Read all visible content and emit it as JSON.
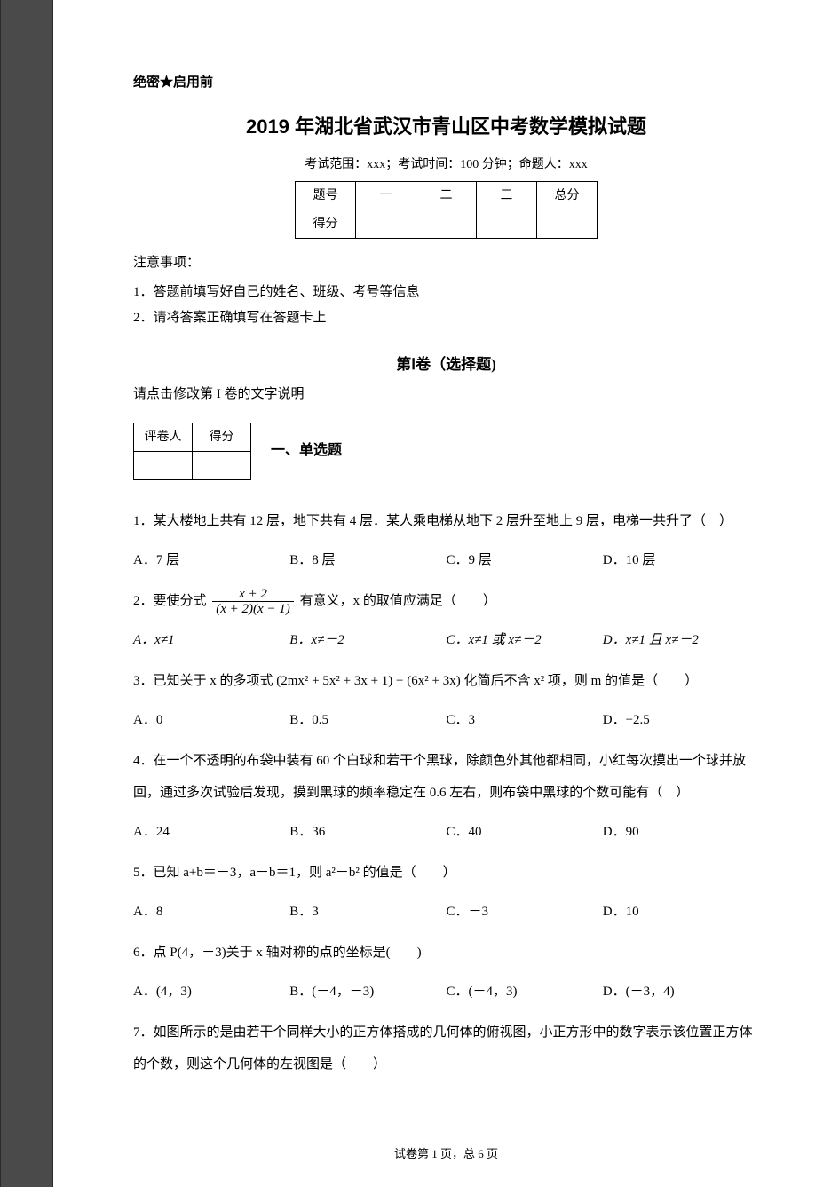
{
  "secret_label": "绝密★启用前",
  "title": "2019 年湖北省武汉市青山区中考数学模拟试题",
  "subinfo": "考试范围：xxx；考试时间：100 分钟；命题人：xxx",
  "score_table": {
    "headers": [
      "题号",
      "一",
      "二",
      "三",
      "总分"
    ],
    "row_label": "得分"
  },
  "notes_title": "注意事项：",
  "notes": [
    "1．答题前填写好自己的姓名、班级、考号等信息",
    "2．请将答案正确填写在答题卡上"
  ],
  "part1_title": "第Ⅰ卷（选择题)",
  "part1_sub": "请点击修改第 I 卷的文字说明",
  "grader_headers": [
    "评卷人",
    "得分"
  ],
  "section1_label": "一、单选题",
  "q1": {
    "text": "1．某大楼地上共有 12 层，地下共有 4 层．某人乘电梯从地下 2 层升至地上 9 层，电梯一共升了（　）",
    "opts": [
      "A．7 层",
      "B．8 层",
      "C．9 层",
      "D．10 层"
    ]
  },
  "q2": {
    "prefix": "2．要使分式 ",
    "num": "x + 2",
    "den": "(x + 2)(x − 1)",
    "suffix": " 有意义，x 的取值应满足（　　）",
    "opts": [
      "A．x≠1",
      "B．x≠－2",
      "C．x≠1 或 x≠－2",
      "D．x≠1 且 x≠－2"
    ]
  },
  "q3": {
    "text": "3．已知关于 x 的多项式 (2mx² + 5x² + 3x + 1) − (6x² + 3x) 化简后不含 x² 项，则 m 的值是（　　）",
    "opts": [
      "A．0",
      "B．0.5",
      "C．3",
      "D．−2.5"
    ]
  },
  "q4": {
    "text": "4．在一个不透明的布袋中装有 60 个白球和若干个黑球，除颜色外其他都相同，小红每次摸出一个球并放回，通过多次试验后发现，摸到黑球的频率稳定在 0.6 左右，则布袋中黑球的个数可能有（　）",
    "opts": [
      "A．24",
      "B．36",
      "C．40",
      "D．90"
    ]
  },
  "q5": {
    "text": "5．已知 a+b＝－3，a－b＝1，则 a²－b² 的值是（　　）",
    "opts": [
      "A．8",
      "B．3",
      "C．－3",
      "D．10"
    ]
  },
  "q6": {
    "text": "6．点 P(4，－3)关于 x 轴对称的点的坐标是(　　)",
    "opts": [
      "A．(4，3)",
      "B．(－4，－3)",
      "C．(－4，3)",
      "D．(－3，4)"
    ]
  },
  "q7": {
    "text": "7．如图所示的是由若干个同样大小的正方体搭成的几何体的俯视图，小正方形中的数字表示该位置正方体的个数，则这个几何体的左视图是（　　）"
  },
  "footer": "试卷第 1 页，总 6 页"
}
